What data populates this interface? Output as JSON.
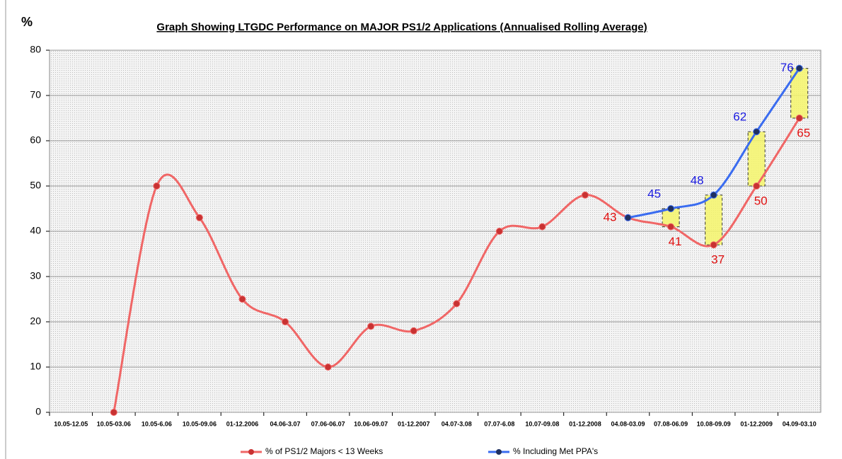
{
  "chart_data": {
    "type": "line",
    "title": "Graph Showing LTGDC Performance on MAJOR PS1/2 Applications (Annualised Rolling Average)",
    "ylabel": "%",
    "categories": [
      "10.05-12.05",
      "10.05-03.06",
      "10.05-6.06",
      "10.05-09.06",
      "01-12.2006",
      "04.06-3.07",
      "07.06-06.07",
      "10.06-09.07",
      "01-12.2007",
      "04.07-3.08",
      "07.07-6.08",
      "10.07-09.08",
      "01-12.2008",
      "04.08-03.09",
      "07.08-06.09",
      "10.08-09.09",
      "01-12.2009",
      "04.09-03.10"
    ],
    "series": [
      {
        "name": "% of PS1/2 Majors < 13 Weeks",
        "color": "#f06666",
        "marker_color": "#c83232",
        "label_color": "#e01010",
        "values": [
          null,
          0,
          50,
          43,
          25,
          20,
          10,
          19,
          18,
          24,
          40,
          41,
          48,
          43,
          41,
          37,
          50,
          65
        ],
        "value_labels": [
          null,
          null,
          null,
          null,
          null,
          null,
          null,
          null,
          null,
          null,
          null,
          null,
          null,
          "43",
          "41",
          "37",
          "50",
          "65"
        ]
      },
      {
        "name": "% Including Met PPA's",
        "color": "#3a6cf0",
        "marker_color": "#1f3060",
        "label_color": "#1a1ae0",
        "values": [
          null,
          null,
          null,
          null,
          null,
          null,
          null,
          null,
          null,
          null,
          null,
          null,
          null,
          43,
          45,
          48,
          62,
          76
        ],
        "value_labels": [
          null,
          null,
          null,
          null,
          null,
          null,
          null,
          null,
          null,
          null,
          null,
          null,
          null,
          null,
          "45",
          "48",
          "62",
          "76"
        ]
      }
    ],
    "ylim": [
      0,
      80
    ],
    "yticks": [
      0,
      10,
      20,
      30,
      40,
      50,
      60,
      70,
      80
    ],
    "grid": true,
    "smooth": true,
    "legend": "bottom"
  }
}
